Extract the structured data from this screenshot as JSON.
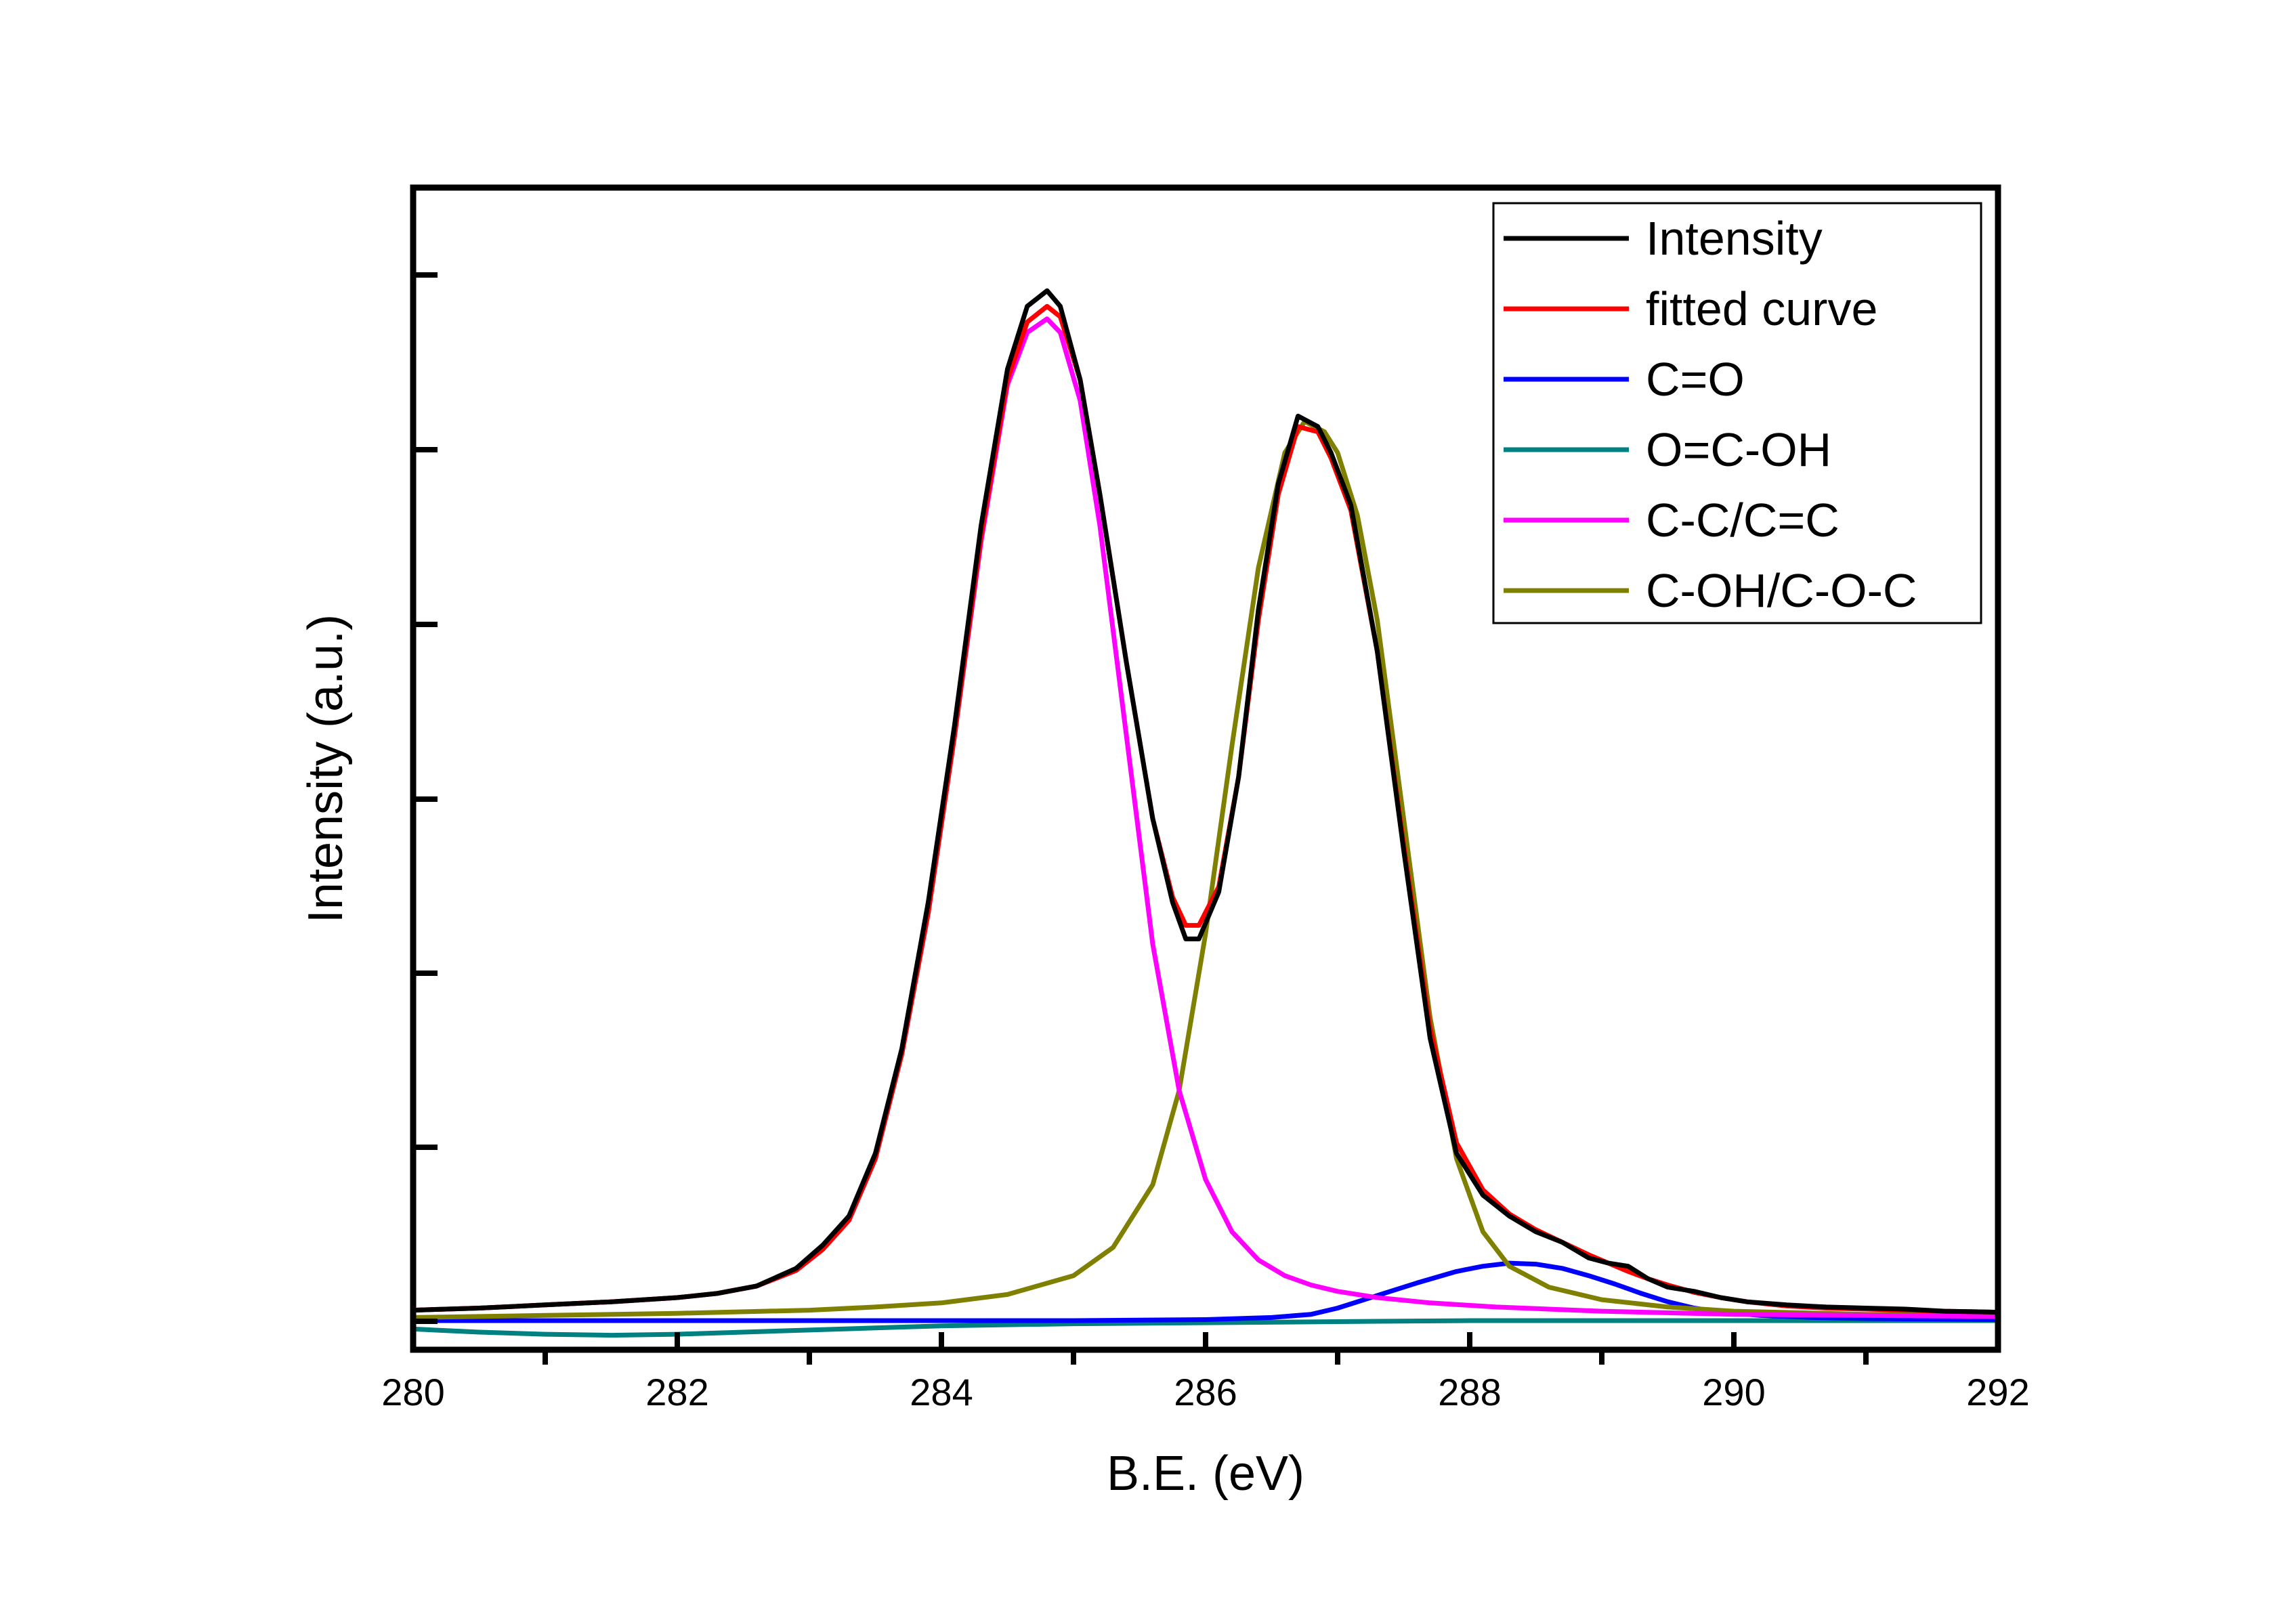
{
  "chart_data": {
    "type": "line",
    "xlabel": "B.E. (eV)",
    "ylabel": "Intensity (a.u.)",
    "xlim": [
      280,
      292
    ],
    "ylim": [
      0,
      1.03
    ],
    "x_ticks": [
      280,
      282,
      284,
      286,
      288,
      290,
      292
    ],
    "x_minor_ticks": [
      281,
      283,
      285,
      287,
      289,
      291
    ],
    "y_ticks": [
      0.0,
      0.167,
      0.333,
      0.5,
      0.667,
      0.833,
      1.0
    ],
    "y_tick_labels_shown": false,
    "grid": false,
    "legend_position": "top-right",
    "series": [
      {
        "name": "Intensity",
        "color": "#000000",
        "x": [
          280,
          280.5,
          281,
          281.5,
          282,
          282.3,
          282.6,
          282.9,
          283.1,
          283.3,
          283.5,
          283.7,
          283.9,
          284.1,
          284.3,
          284.5,
          284.65,
          284.8,
          284.9,
          285.05,
          285.2,
          285.4,
          285.6,
          285.75,
          285.85,
          285.95,
          286.1,
          286.25,
          286.4,
          286.55,
          286.7,
          286.85,
          286.95,
          287.1,
          287.3,
          287.5,
          287.7,
          287.9,
          288.1,
          288.3,
          288.5,
          288.7,
          288.9,
          289.05,
          289.2,
          289.35,
          289.5,
          289.7,
          289.9,
          290.1,
          290.4,
          290.7,
          291,
          291.3,
          291.6,
          292
        ],
        "y": [
          0.01,
          0.012,
          0.015,
          0.018,
          0.022,
          0.026,
          0.033,
          0.05,
          0.072,
          0.1,
          0.16,
          0.26,
          0.4,
          0.57,
          0.76,
          0.91,
          0.97,
          0.985,
          0.97,
          0.9,
          0.79,
          0.63,
          0.48,
          0.4,
          0.365,
          0.365,
          0.41,
          0.52,
          0.68,
          0.8,
          0.865,
          0.855,
          0.83,
          0.78,
          0.64,
          0.45,
          0.27,
          0.16,
          0.12,
          0.1,
          0.085,
          0.075,
          0.06,
          0.055,
          0.052,
          0.04,
          0.032,
          0.028,
          0.022,
          0.018,
          0.015,
          0.013,
          0.012,
          0.011,
          0.009,
          0.008
        ]
      },
      {
        "name": "fitted curve",
        "color": "#ff0000",
        "x": [
          280,
          280.5,
          281,
          281.5,
          282,
          282.3,
          282.6,
          282.9,
          283.1,
          283.3,
          283.5,
          283.7,
          283.9,
          284.1,
          284.3,
          284.5,
          284.65,
          284.8,
          284.9,
          285.05,
          285.2,
          285.4,
          285.6,
          285.75,
          285.85,
          285.95,
          286.1,
          286.25,
          286.4,
          286.55,
          286.7,
          286.85,
          286.95,
          287.1,
          287.3,
          287.5,
          287.7,
          287.9,
          288.1,
          288.3,
          288.5,
          288.7,
          288.9,
          289.05,
          289.2,
          289.35,
          289.5,
          289.7,
          289.9,
          290.1,
          290.4,
          290.7,
          291,
          291.3,
          291.6,
          292
        ],
        "y": [
          0.01,
          0.012,
          0.015,
          0.018,
          0.022,
          0.026,
          0.033,
          0.048,
          0.068,
          0.096,
          0.155,
          0.255,
          0.39,
          0.56,
          0.75,
          0.9,
          0.955,
          0.97,
          0.96,
          0.9,
          0.79,
          0.63,
          0.48,
          0.405,
          0.378,
          0.378,
          0.415,
          0.52,
          0.67,
          0.79,
          0.855,
          0.85,
          0.825,
          0.775,
          0.64,
          0.455,
          0.28,
          0.17,
          0.125,
          0.102,
          0.087,
          0.075,
          0.063,
          0.055,
          0.047,
          0.04,
          0.034,
          0.027,
          0.022,
          0.018,
          0.014,
          0.012,
          0.011,
          0.01,
          0.009,
          0.008
        ]
      },
      {
        "name": "C=O",
        "color": "#0000ff",
        "x": [
          280,
          282,
          284,
          285,
          286,
          286.5,
          286.8,
          287,
          287.3,
          287.6,
          287.9,
          288.1,
          288.3,
          288.5,
          288.7,
          288.9,
          289.1,
          289.3,
          289.5,
          289.7,
          289.9,
          290.2,
          290.6,
          291,
          292
        ],
        "y": [
          0.0,
          0.0,
          0.0,
          0.0,
          0.001,
          0.003,
          0.006,
          0.012,
          0.024,
          0.036,
          0.047,
          0.052,
          0.055,
          0.054,
          0.05,
          0.043,
          0.035,
          0.026,
          0.018,
          0.012,
          0.008,
          0.005,
          0.003,
          0.002,
          0.001
        ]
      },
      {
        "name": "O=C-OH",
        "color": "#008080",
        "x": [
          280,
          280.5,
          281,
          281.5,
          282,
          282.5,
          283,
          283.5,
          284,
          285,
          286,
          287,
          288,
          289,
          290,
          291,
          292
        ],
        "y": [
          -0.008,
          -0.011,
          -0.013,
          -0.014,
          -0.013,
          -0.011,
          -0.009,
          -0.007,
          -0.005,
          -0.003,
          -0.002,
          -0.001,
          0.0,
          0.0,
          0.0,
          0.0,
          0.0
        ]
      },
      {
        "name": "C-C/C=C",
        "color": "#ff00ff",
        "x": [
          280,
          280.5,
          281,
          281.5,
          282,
          282.3,
          282.6,
          282.9,
          283.1,
          283.3,
          283.5,
          283.7,
          283.9,
          284.1,
          284.3,
          284.5,
          284.65,
          284.8,
          284.9,
          285.05,
          285.2,
          285.4,
          285.6,
          285.8,
          286,
          286.2,
          286.4,
          286.6,
          286.8,
          287,
          287.3,
          287.7,
          288.2,
          289,
          290,
          291,
          292
        ],
        "y": [
          0.01,
          0.012,
          0.015,
          0.018,
          0.022,
          0.026,
          0.033,
          0.048,
          0.068,
          0.096,
          0.155,
          0.255,
          0.39,
          0.56,
          0.745,
          0.895,
          0.945,
          0.958,
          0.945,
          0.88,
          0.76,
          0.56,
          0.36,
          0.22,
          0.135,
          0.085,
          0.058,
          0.043,
          0.034,
          0.028,
          0.022,
          0.017,
          0.013,
          0.009,
          0.006,
          0.005,
          0.004
        ]
      },
      {
        "name": "C-OH/C-O-C",
        "color": "#808000",
        "x": [
          280,
          281,
          282,
          283,
          283.5,
          284,
          284.5,
          285,
          285.3,
          285.6,
          285.8,
          286,
          286.2,
          286.4,
          286.6,
          286.75,
          286.9,
          287,
          287.15,
          287.3,
          287.5,
          287.7,
          287.9,
          288.1,
          288.3,
          288.6,
          289,
          289.5,
          290,
          291,
          292
        ],
        "y": [
          0.003,
          0.005,
          0.007,
          0.01,
          0.013,
          0.017,
          0.025,
          0.043,
          0.07,
          0.13,
          0.22,
          0.37,
          0.55,
          0.72,
          0.83,
          0.86,
          0.85,
          0.83,
          0.77,
          0.67,
          0.48,
          0.29,
          0.155,
          0.085,
          0.052,
          0.032,
          0.02,
          0.013,
          0.009,
          0.006,
          0.005
        ]
      }
    ]
  }
}
